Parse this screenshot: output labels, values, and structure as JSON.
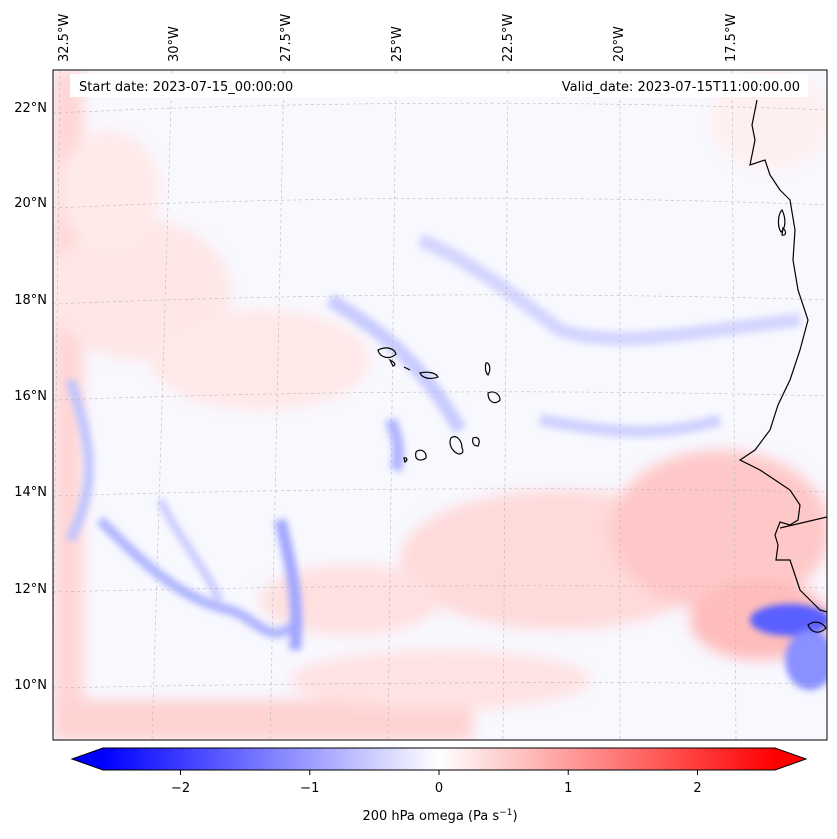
{
  "header": {
    "start_date": "Start date: 2023-07-15_00:00:00",
    "valid_date": "Valid_date: 2023-07-15T11:00:00.00"
  },
  "lon_labels": [
    "32.5°W",
    "30°W",
    "27.5°W",
    "25°W",
    "22.5°W",
    "20°W",
    "17.5°W"
  ],
  "lat_labels": [
    "22°N",
    "20°N",
    "18°N",
    "16°N",
    "14°N",
    "12°N",
    "10°N"
  ],
  "colorbar": {
    "ticks": [
      "−2",
      "−1",
      "0",
      "1",
      "2"
    ],
    "tick_values": [
      -2,
      -1,
      0,
      1,
      2
    ],
    "vmin": -2.6,
    "vmax": 2.6,
    "label": "200 hPa omega (Pa s",
    "label_sup": "−1",
    "label_tail": ")",
    "neg_color": "#0000ff",
    "zero_color": "#ffffff",
    "pos_color": "#ff0000"
  },
  "field_color_neutral": "#f8f8ff"
}
